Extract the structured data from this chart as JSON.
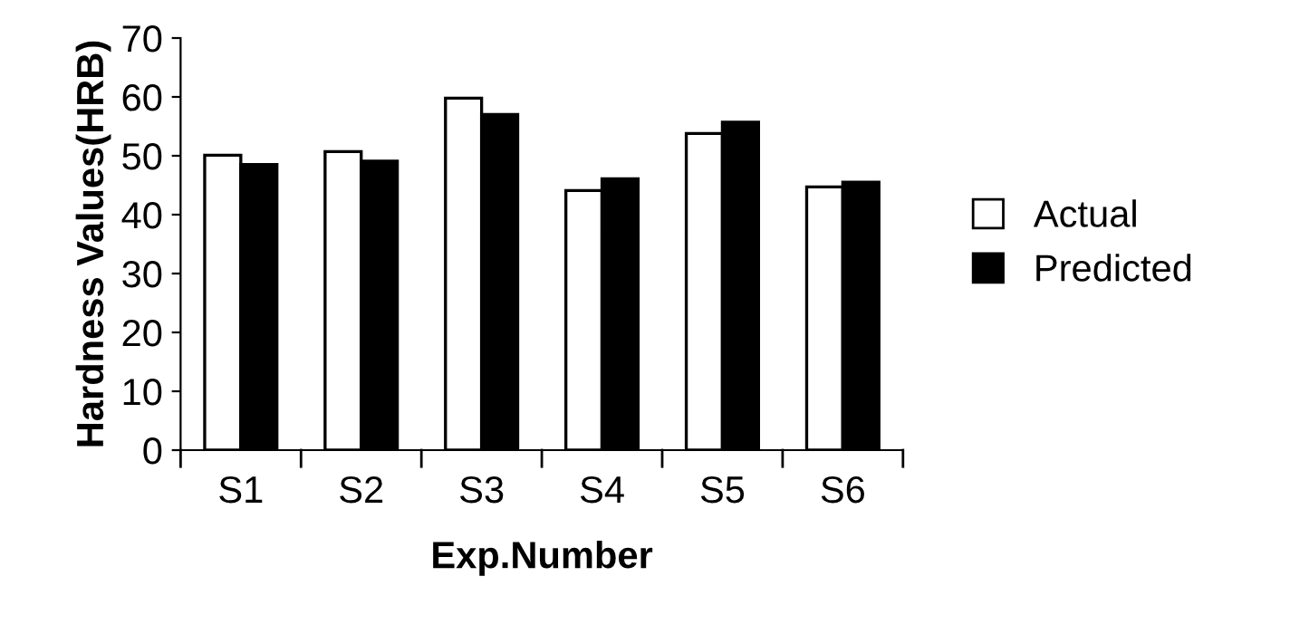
{
  "chart_data": {
    "type": "bar",
    "xlabel": "Exp.Number",
    "ylabel": "Hardness Values(HRB)",
    "categories": [
      "S1",
      "S2",
      "S3",
      "S4",
      "S5",
      "S6"
    ],
    "series": [
      {
        "name": "Actual",
        "color": "#ffffff",
        "values": [
          50.1,
          50.7,
          59.8,
          44.1,
          53.8,
          44.7
        ]
      },
      {
        "name": "Predicted",
        "color": "#000000",
        "values": [
          48.5,
          49.1,
          57.0,
          46.1,
          55.7,
          45.5
        ]
      }
    ],
    "ylim": [
      0,
      70
    ],
    "yticks": [
      0,
      10,
      20,
      30,
      40,
      50,
      60,
      70
    ],
    "grid": false,
    "legend": "right"
  }
}
